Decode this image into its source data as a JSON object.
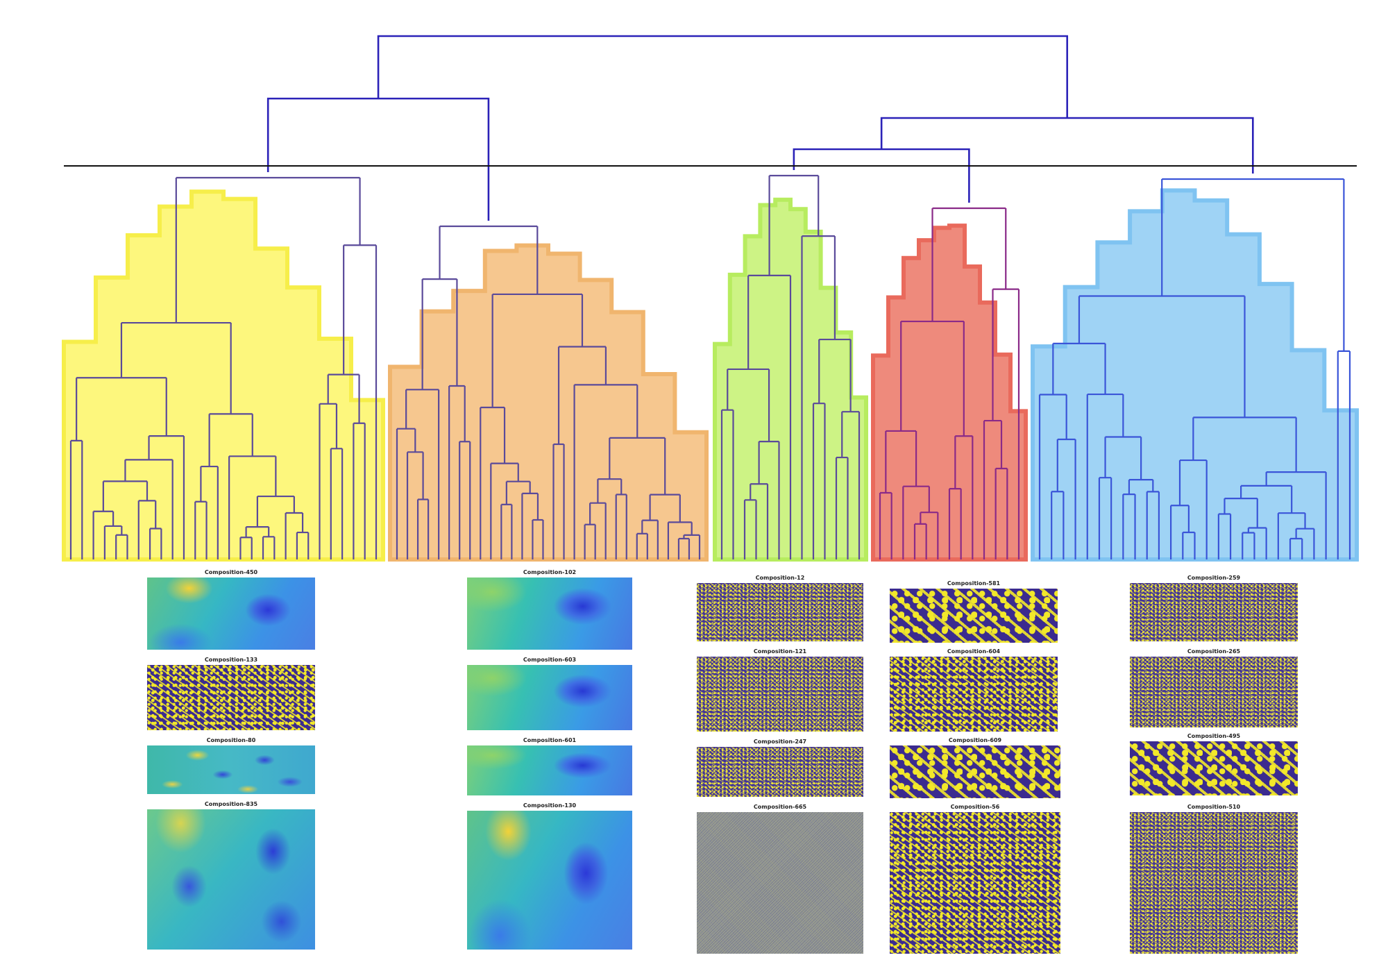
{
  "figure": {
    "description_free": true,
    "clusters": [
      {
        "id": "yellow",
        "color": "#fdf77d",
        "stroke": "#f6ee4a",
        "leaves": 28
      },
      {
        "id": "orange",
        "color": "#f6c78f",
        "stroke": "#f0b56e",
        "leaves": 30
      },
      {
        "id": "green",
        "color": "#cdf385",
        "stroke": "#b7ec5f",
        "leaves": 13
      },
      {
        "id": "red",
        "color": "#ee8a7c",
        "stroke": "#e96a5c",
        "leaves": 13
      },
      {
        "id": "blue",
        "color": "#9fd3f5",
        "stroke": "#7fc3f1",
        "leaves": 27
      }
    ],
    "link_color": "#2b22b8",
    "threshold_line_color": "#111111"
  },
  "panels": {
    "col1": [
      {
        "title": "Composition-450",
        "pattern": "smooth"
      },
      {
        "title": "Composition-133",
        "pattern": "turing"
      },
      {
        "title": "Composition-80",
        "pattern": "smooth3"
      },
      {
        "title": "Composition-835",
        "pattern": "smooth4"
      }
    ],
    "col2": [
      {
        "title": "Composition-102",
        "pattern": "smooth2"
      },
      {
        "title": "Composition-603",
        "pattern": "smooth2"
      },
      {
        "title": "Composition-601",
        "pattern": "smooth2"
      },
      {
        "title": "Composition-130",
        "pattern": "smooth"
      }
    ],
    "col3": [
      {
        "title": "Composition-12",
        "pattern": "turing-fine"
      },
      {
        "title": "Composition-121",
        "pattern": "turing-fine"
      },
      {
        "title": "Composition-247",
        "pattern": "turing-fine"
      },
      {
        "title": "Composition-665",
        "pattern": "noise"
      }
    ],
    "col4": [
      {
        "title": "Composition-581",
        "pattern": "turing-coarse"
      },
      {
        "title": "Composition-604",
        "pattern": "turing"
      },
      {
        "title": "Composition-609",
        "pattern": "turing-coarse"
      },
      {
        "title": "Composition-56",
        "pattern": "turing"
      }
    ],
    "col5": [
      {
        "title": "Composition-259",
        "pattern": "turing-fine"
      },
      {
        "title": "Composition-265",
        "pattern": "turing-fine"
      },
      {
        "title": "Composition-495",
        "pattern": "turing-coarse"
      },
      {
        "title": "Composition-510",
        "pattern": "turing-fine"
      }
    ]
  }
}
